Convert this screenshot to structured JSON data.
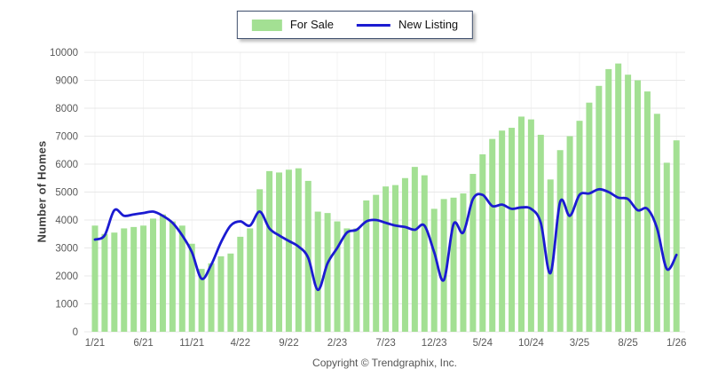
{
  "legend": {
    "items": [
      {
        "label": "For Sale",
        "color": "#a3e093",
        "type": "bar"
      },
      {
        "label": "New Listing",
        "color": "#1b1bd1",
        "type": "line"
      }
    ]
  },
  "footer": {
    "copyright": "Copyright © Trendgraphix, Inc."
  },
  "chart_data": {
    "type": "bar",
    "title": "",
    "xlabel": "",
    "ylabel": "Number of Homes",
    "ylim": [
      0,
      10000
    ],
    "ytick_step": 1000,
    "grid": "horizontal light gray, faint vertical at labeled ticks",
    "legend_position": "top-center",
    "categories": [
      "1/21",
      "2/21",
      "3/21",
      "4/21",
      "5/21",
      "6/21",
      "7/21",
      "8/21",
      "9/21",
      "10/21",
      "11/21",
      "12/21",
      "1/22",
      "2/22",
      "3/22",
      "4/22",
      "5/22",
      "6/22",
      "7/22",
      "8/22",
      "9/22",
      "10/22",
      "11/22",
      "12/22",
      "1/23",
      "2/23",
      "3/23",
      "4/23",
      "5/23",
      "6/23",
      "7/23",
      "8/23",
      "9/23",
      "10/23",
      "11/23",
      "12/23",
      "1/24",
      "2/24",
      "3/24",
      "4/24",
      "5/24",
      "6/24",
      "7/24",
      "8/24",
      "9/24",
      "10/24",
      "11/24",
      "12/24",
      "1/25",
      "2/25",
      "3/25",
      "4/25",
      "5/25",
      "6/25",
      "7/25",
      "8/25",
      "9/25",
      "10/25",
      "11/25",
      "12/25",
      "1/26"
    ],
    "x_tick_labels": [
      "1/21",
      "6/21",
      "11/21",
      "4/22",
      "9/22",
      "2/23",
      "7/23",
      "12/23",
      "5/24",
      "10/24",
      "3/25",
      "8/25",
      "1/26"
    ],
    "x_tick_every": 5,
    "series": [
      {
        "name": "For Sale",
        "type": "bar",
        "color": "#a3e093",
        "values": [
          3800,
          3500,
          3550,
          3700,
          3750,
          3800,
          4050,
          4200,
          3950,
          3800,
          3150,
          2250,
          2450,
          2700,
          2800,
          3400,
          3700,
          5100,
          5750,
          5700,
          5800,
          5850,
          5400,
          4300,
          4250,
          3950,
          3700,
          3700,
          4700,
          4900,
          5200,
          5250,
          5500,
          5900,
          5600,
          4400,
          4750,
          4800,
          4950,
          5650,
          6350,
          6900,
          7200,
          7300,
          7700,
          7600,
          7050,
          5450,
          6500,
          7000,
          7550,
          8200,
          8800,
          9400,
          9600,
          9200,
          9000,
          8600,
          7800,
          6050,
          6850
        ]
      },
      {
        "name": "New Listing",
        "type": "line",
        "color": "#1b1bd1",
        "values": [
          3300,
          3450,
          4350,
          4150,
          4200,
          4250,
          4300,
          4150,
          3900,
          3450,
          2850,
          1900,
          2400,
          3200,
          3800,
          3950,
          3800,
          4300,
          3700,
          3450,
          3250,
          3050,
          2650,
          1500,
          2450,
          3000,
          3550,
          3650,
          3950,
          4000,
          3900,
          3800,
          3750,
          3650,
          3800,
          2850,
          1850,
          3850,
          3550,
          4750,
          4900,
          4500,
          4550,
          4400,
          4450,
          4400,
          3900,
          2100,
          4650,
          4150,
          4900,
          4950,
          5100,
          5000,
          4800,
          4750,
          4350,
          4400,
          3700,
          2250,
          2750
        ]
      }
    ]
  }
}
